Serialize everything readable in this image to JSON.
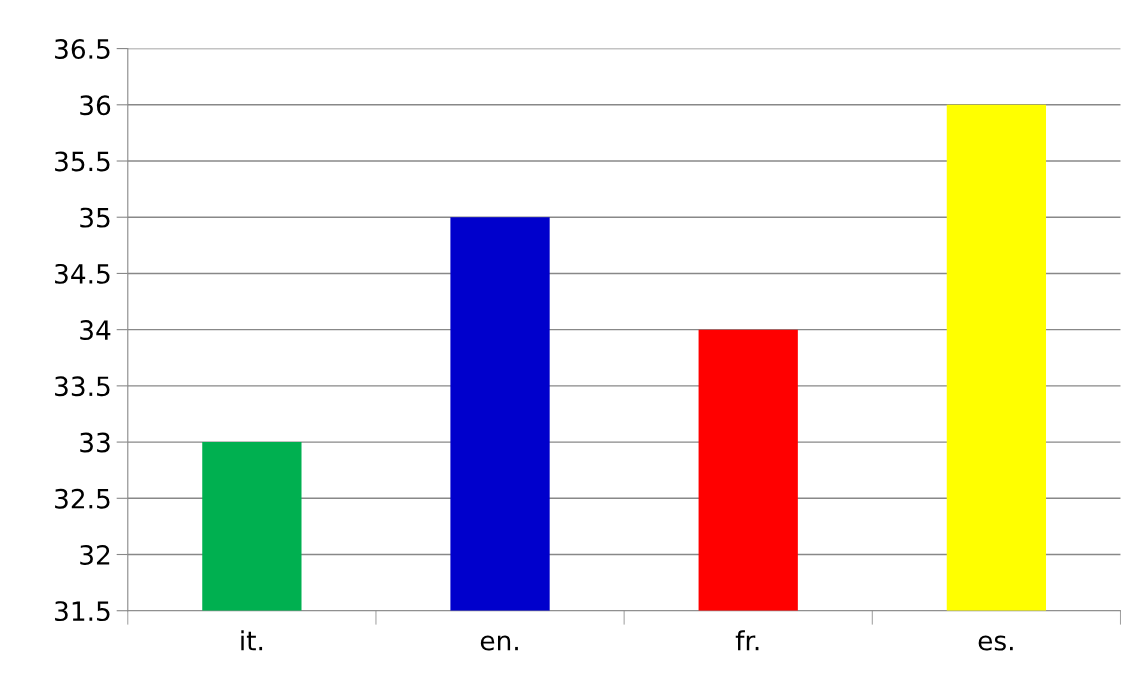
{
  "chart_data": {
    "type": "bar",
    "categories": [
      "it.",
      "en.",
      "fr.",
      "es."
    ],
    "values": [
      33,
      35,
      34,
      36
    ],
    "colors": [
      "#00b050",
      "#0000cc",
      "#ff0000",
      "#ffff00"
    ],
    "ylim": [
      31.5,
      36.5
    ],
    "yticks": [
      31.5,
      32,
      32.5,
      33,
      33.5,
      34,
      34.5,
      35,
      35.5,
      36,
      36.5
    ],
    "grid": "y",
    "legend": false
  }
}
